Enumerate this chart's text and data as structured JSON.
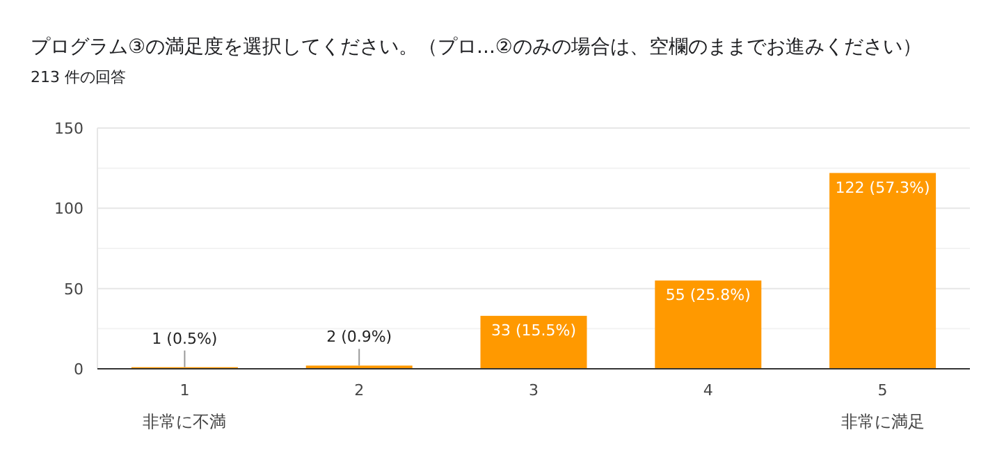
{
  "chart_data": {
    "type": "bar",
    "title": "プログラム③の満足度を選択してください。（プロ...②のみの場合は、空欄のままでお進みください）",
    "subtitle": "213 件の回答",
    "categories": [
      "1",
      "2",
      "3",
      "4",
      "5"
    ],
    "values": [
      1,
      2,
      33,
      55,
      122
    ],
    "color": "#ff9900",
    "value_labels": [
      "1 (0.5%)",
      "2 (0.9%)",
      "33 (15.5%)",
      "55 (25.8%)",
      "122 (57.3%)"
    ],
    "ylim": [
      0,
      150
    ],
    "yticks": [
      0,
      {
        "value": 25,
        "label": null
      },
      50,
      {
        "value": 75,
        "label": null
      },
      100,
      {
        "value": 125,
        "label": null
      },
      150
    ],
    "grid": true,
    "annotations": [
      "非常に不満",
      "非常に満足"
    ]
  }
}
